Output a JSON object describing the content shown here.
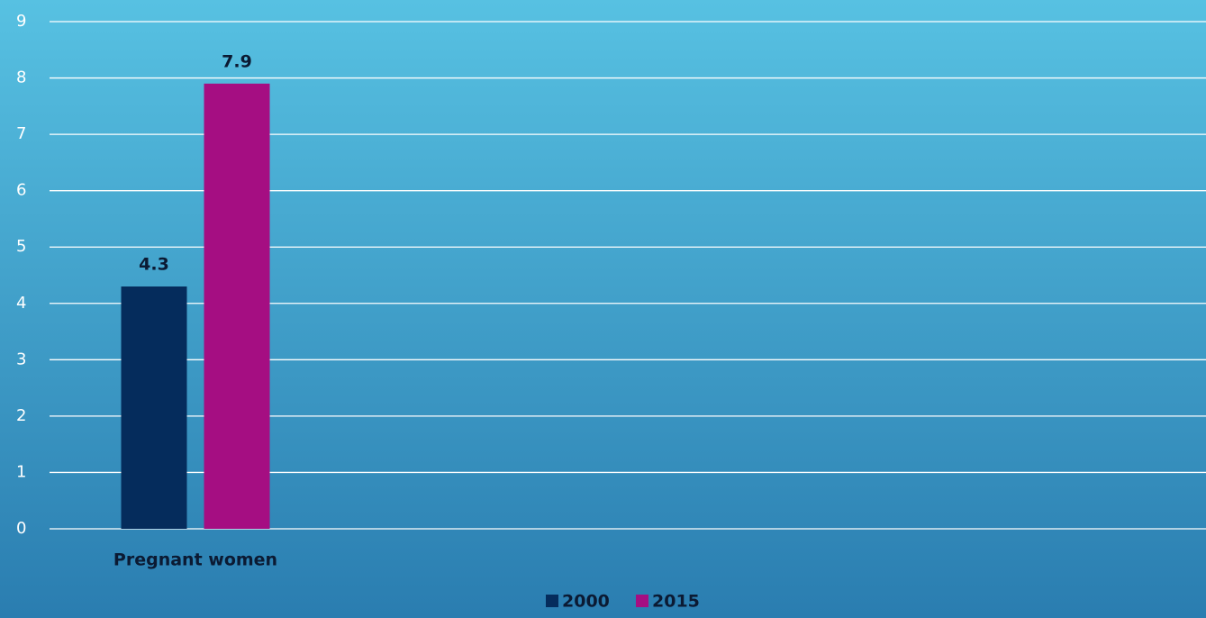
{
  "chart_data": {
    "type": "bar",
    "categories": [
      "Pregnant women"
    ],
    "series": [
      {
        "name": "2000",
        "color": "#052c5c",
        "values": [
          4.3
        ]
      },
      {
        "name": "2015",
        "color": "#a50e82",
        "values": [
          7.9
        ]
      }
    ],
    "ylim": [
      0,
      9
    ],
    "yticks": [
      0,
      1,
      2,
      3,
      4,
      5,
      6,
      7,
      8,
      9
    ],
    "grid": true,
    "legend": "bottom"
  }
}
